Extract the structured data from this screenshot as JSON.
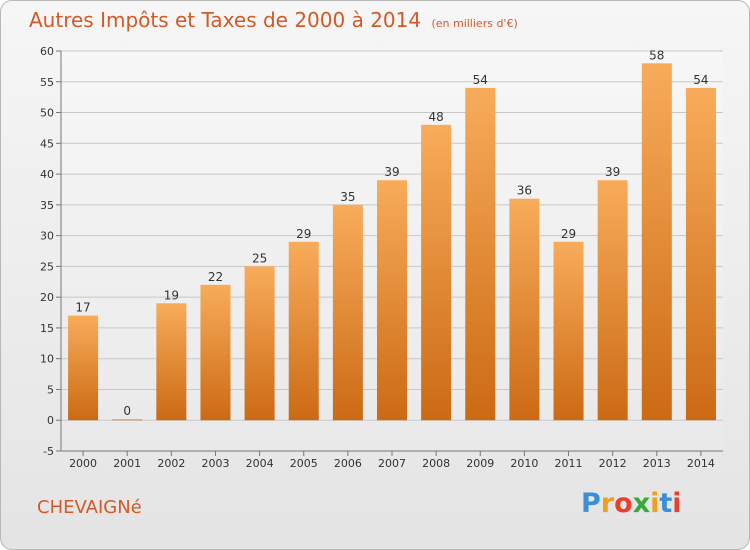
{
  "header": {
    "title": "Autres Impôts et Taxes de 2000 à 2014",
    "subtitle": "(en milliers d'€)"
  },
  "footer": {
    "city": "CHEVAIGNé",
    "logo": {
      "letters": [
        "P",
        "r",
        "o",
        "x",
        "i",
        "t",
        "i"
      ],
      "colors": [
        "#3a8fd6",
        "#f0a020",
        "#e8402a",
        "#3aa83a",
        "#f0a020",
        "#3a8fd6",
        "#e8402a"
      ]
    }
  },
  "chart_data": {
    "type": "bar",
    "title": "Autres Impôts et Taxes de 2000 à 2014",
    "subtitle": "(en milliers d'€)",
    "categories": [
      "2000",
      "2001",
      "2002",
      "2003",
      "2004",
      "2005",
      "2006",
      "2007",
      "2008",
      "2009",
      "2010",
      "2011",
      "2012",
      "2013",
      "2014"
    ],
    "values": [
      17,
      0,
      19,
      22,
      25,
      29,
      35,
      39,
      48,
      54,
      36,
      29,
      39,
      58,
      54
    ],
    "ylim": [
      -5,
      60
    ],
    "yticks": [
      -5,
      0,
      5,
      10,
      15,
      20,
      25,
      30,
      35,
      40,
      45,
      50,
      55,
      60
    ],
    "grid": true,
    "bar_color": "#f0922e",
    "label_color": "#333333"
  }
}
